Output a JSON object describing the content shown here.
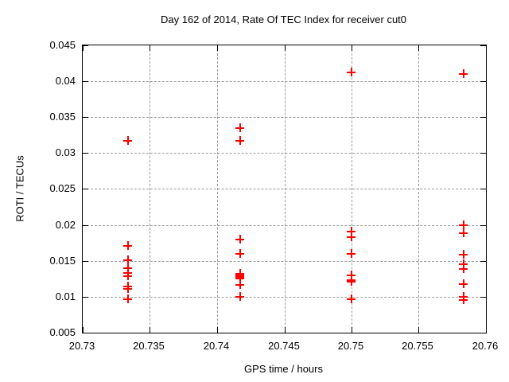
{
  "window": {
    "title": "Day 162 of 2014, Rate Of TEC Index for receiver cut0"
  },
  "colors": {
    "marker": "#ff0000",
    "border": "#000000",
    "grid": "#9b9b9b",
    "background": "#ffffff"
  },
  "chart_data": {
    "type": "scatter",
    "title": "Day 162 of 2014, Rate Of TEC Index for receiver cut0",
    "xlabel": "GPS time / hours",
    "ylabel": "ROTI / TECUs",
    "xlim": [
      20.73,
      20.76
    ],
    "ylim": [
      0.005,
      0.045
    ],
    "xticks": [
      20.73,
      20.735,
      20.74,
      20.745,
      20.75,
      20.755,
      20.76
    ],
    "xtick_labels": [
      "20.73",
      "20.735",
      "20.74",
      "20.745",
      "20.75",
      "20.755",
      "20.76"
    ],
    "yticks": [
      0.005,
      0.01,
      0.015,
      0.02,
      0.025,
      0.03,
      0.035,
      0.04,
      0.045
    ],
    "ytick_labels": [
      "0.005",
      "0.01",
      "0.015",
      "0.02",
      "0.025",
      "0.03",
      "0.035",
      "0.04",
      "0.045"
    ],
    "grid": true,
    "legend": "none",
    "marker": {
      "shape": "plus",
      "color": "#ff0000"
    },
    "series": [
      {
        "name": "ROTI",
        "points": [
          [
            20.73333,
            0.0318
          ],
          [
            20.73333,
            0.0171
          ],
          [
            20.73333,
            0.0151
          ],
          [
            20.73333,
            0.014
          ],
          [
            20.73333,
            0.0134
          ],
          [
            20.73333,
            0.0129
          ],
          [
            20.73333,
            0.0115
          ],
          [
            20.73333,
            0.0112
          ],
          [
            20.73333,
            0.0097
          ],
          [
            20.74167,
            0.0335
          ],
          [
            20.74167,
            0.0318
          ],
          [
            20.74167,
            0.018
          ],
          [
            20.74167,
            0.016
          ],
          [
            20.74167,
            0.0133
          ],
          [
            20.74167,
            0.013
          ],
          [
            20.74167,
            0.0128
          ],
          [
            20.74167,
            0.0127
          ],
          [
            20.74167,
            0.0126
          ],
          [
            20.74167,
            0.0117
          ],
          [
            20.74167,
            0.01
          ],
          [
            20.75,
            0.0413
          ],
          [
            20.75,
            0.0191
          ],
          [
            20.75,
            0.0184
          ],
          [
            20.75,
            0.016
          ],
          [
            20.75,
            0.013
          ],
          [
            20.75,
            0.0124
          ],
          [
            20.75,
            0.0121
          ],
          [
            20.75,
            0.0097
          ],
          [
            20.75833,
            0.0411
          ],
          [
            20.75833,
            0.02
          ],
          [
            20.75833,
            0.0189
          ],
          [
            20.75833,
            0.0159
          ],
          [
            20.75833,
            0.0146
          ],
          [
            20.75833,
            0.0139
          ],
          [
            20.75833,
            0.0118
          ],
          [
            20.75833,
            0.01
          ],
          [
            20.75833,
            0.0096
          ]
        ]
      }
    ]
  }
}
